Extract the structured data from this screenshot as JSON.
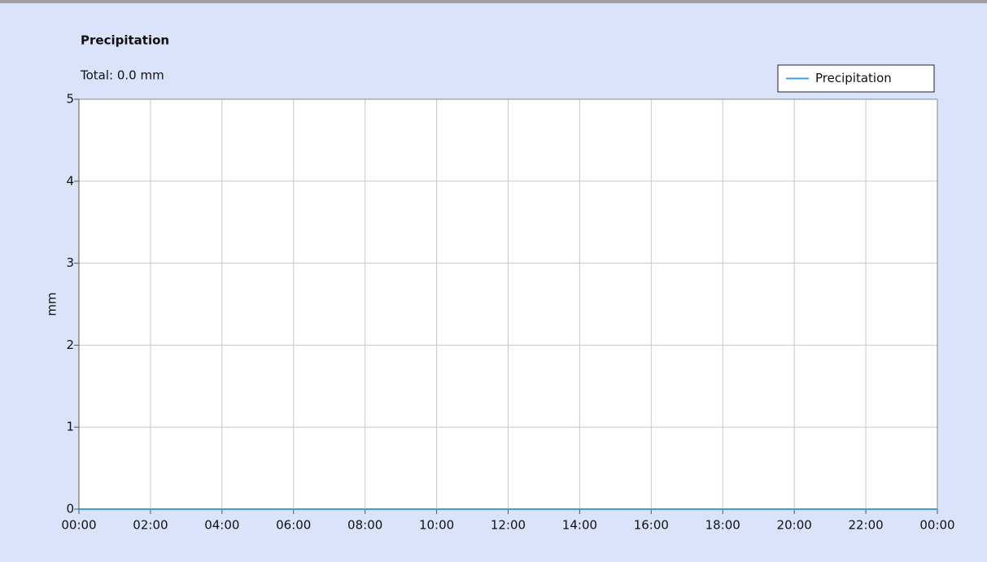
{
  "chart_data": {
    "type": "line",
    "title": "Precipitation",
    "subtitle": "Total: 0.0 mm",
    "ylabel": "mm",
    "x": [
      0,
      1,
      2,
      3,
      4,
      5,
      6,
      7,
      8,
      9,
      10,
      11,
      12,
      13,
      14,
      15,
      16,
      17,
      18,
      19,
      20,
      21,
      22,
      23,
      24
    ],
    "series": [
      {
        "name": "Precipitation",
        "color": "#3a9df0",
        "values": [
          0,
          0,
          0,
          0,
          0,
          0,
          0,
          0,
          0,
          0,
          0,
          0,
          0,
          0,
          0,
          0,
          0,
          0,
          0,
          0,
          0,
          0,
          0,
          0,
          0
        ]
      }
    ],
    "xlim": [
      0,
      24
    ],
    "xticks": [
      {
        "value": 0,
        "label": "00:00"
      },
      {
        "value": 2,
        "label": "02:00"
      },
      {
        "value": 4,
        "label": "04:00"
      },
      {
        "value": 6,
        "label": "06:00"
      },
      {
        "value": 8,
        "label": "08:00"
      },
      {
        "value": 10,
        "label": "10:00"
      },
      {
        "value": 12,
        "label": "12:00"
      },
      {
        "value": 14,
        "label": "14:00"
      },
      {
        "value": 16,
        "label": "16:00"
      },
      {
        "value": 18,
        "label": "18:00"
      },
      {
        "value": 20,
        "label": "20:00"
      },
      {
        "value": 22,
        "label": "22:00"
      },
      {
        "value": 24,
        "label": "00:00"
      }
    ],
    "ylim": [
      0,
      5
    ],
    "yticks": [
      0,
      1,
      2,
      3,
      4,
      5
    ],
    "grid": true,
    "legend": "upper right"
  }
}
